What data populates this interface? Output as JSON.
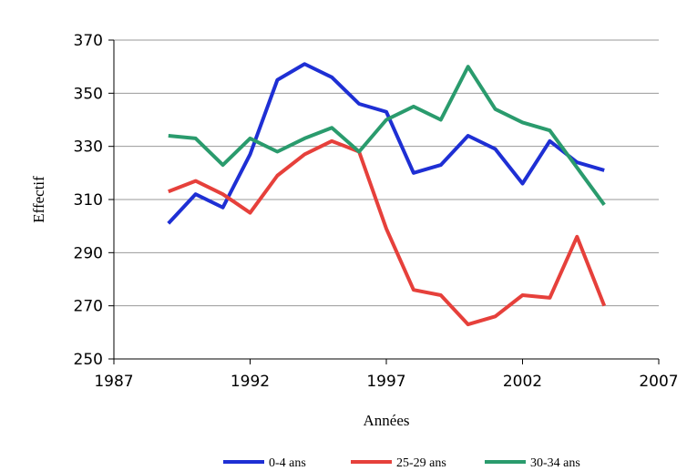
{
  "chart_data": {
    "type": "line",
    "x_label": "Années",
    "y_label": "Effectif",
    "x": [
      1989,
      1990,
      1991,
      1992,
      1993,
      1994,
      1995,
      1996,
      1997,
      1998,
      1999,
      2000,
      2001,
      2002,
      2003,
      2004,
      2005
    ],
    "series": [
      {
        "name": "0-4 ans",
        "color": "#1e2fd4",
        "values": [
          301,
          312,
          307,
          327,
          355,
          361,
          356,
          346,
          343,
          320,
          323,
          334,
          329,
          316,
          332,
          324,
          321
        ]
      },
      {
        "name": "25-29 ans",
        "color": "#e6403b",
        "values": [
          313,
          317,
          312,
          305,
          319,
          327,
          332,
          328,
          299,
          276,
          274,
          263,
          266,
          274,
          273,
          296,
          270
        ]
      },
      {
        "name": "30-34 ans",
        "color": "#2a9b6d",
        "values": [
          334,
          333,
          323,
          333,
          328,
          333,
          337,
          328,
          340,
          345,
          340,
          360,
          344,
          339,
          336,
          322,
          308
        ]
      }
    ],
    "xlim": [
      1987,
      2007
    ],
    "xticks": [
      1987,
      1992,
      1997,
      2002,
      2007
    ],
    "ylim": [
      250,
      370
    ],
    "yticks": [
      250,
      270,
      290,
      310,
      330,
      350,
      370
    ],
    "grid": true,
    "legend": "bottom"
  }
}
